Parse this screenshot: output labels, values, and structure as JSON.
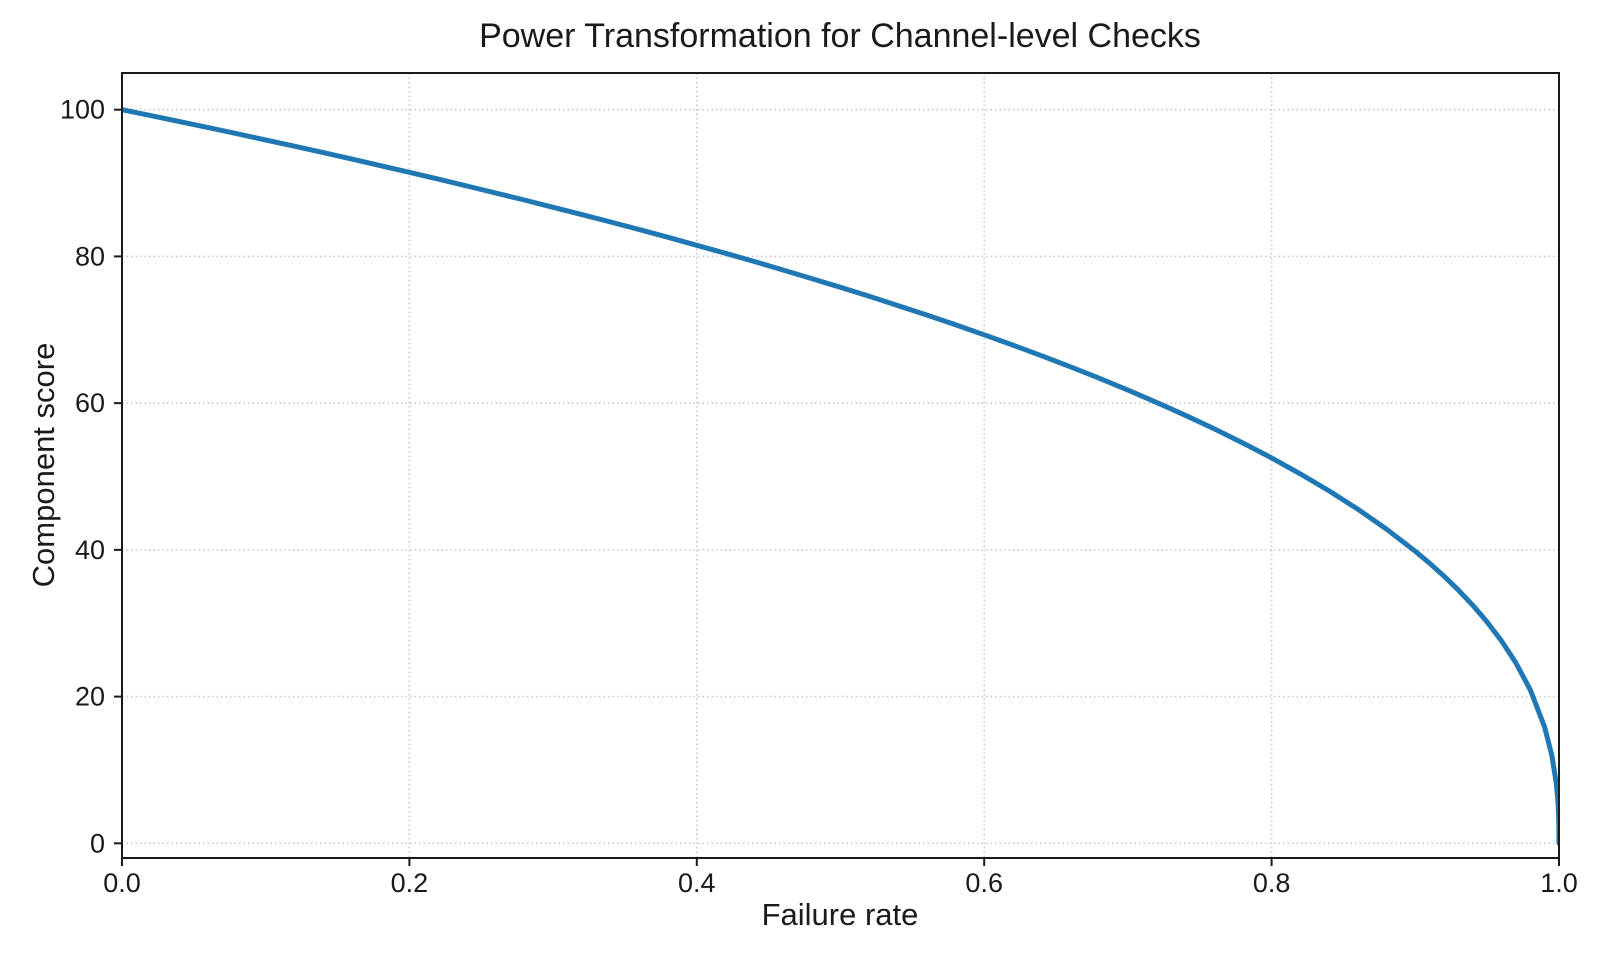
{
  "page": {
    "background": "#ffffff"
  },
  "chart_data": {
    "type": "line",
    "title": "Power Transformation for Channel-level Checks",
    "xlabel": "Failure rate",
    "ylabel": "Component score",
    "xlim": [
      0.0,
      1.0
    ],
    "ylim": [
      -2,
      105
    ],
    "xticks": [
      0.0,
      0.2,
      0.4,
      0.6,
      0.8,
      1.0
    ],
    "xtick_labels": [
      "0.0",
      "0.2",
      "0.4",
      "0.6",
      "0.8",
      "1.0"
    ],
    "yticks": [
      0,
      20,
      40,
      60,
      80,
      100
    ],
    "ytick_labels": [
      "0",
      "20",
      "40",
      "60",
      "80",
      "100"
    ],
    "grid": {
      "visible": true,
      "style": "dotted",
      "color": "#c8c8c8"
    },
    "legend": {
      "visible": false
    },
    "series": [
      {
        "name": "component-score-curve",
        "color": "#1f77b4",
        "line_width": 5,
        "formula": "y = 100 * (1 - x)^0.4",
        "x": [
          0,
          0.02,
          0.04,
          0.06,
          0.08,
          0.1,
          0.12,
          0.14,
          0.16,
          0.18,
          0.2,
          0.22,
          0.24,
          0.26,
          0.28,
          0.3,
          0.32,
          0.34,
          0.36,
          0.38,
          0.4,
          0.42,
          0.44,
          0.46,
          0.48,
          0.5,
          0.52,
          0.54,
          0.56,
          0.58,
          0.6,
          0.62,
          0.64,
          0.66,
          0.68,
          0.7,
          0.72,
          0.74,
          0.76,
          0.78,
          0.8,
          0.82,
          0.84,
          0.86,
          0.88,
          0.9,
          0.91,
          0.92,
          0.93,
          0.94,
          0.95,
          0.96,
          0.97,
          0.98,
          0.99,
          0.995,
          0.998,
          0.999,
          0.9995,
          0.9999,
          1.0
        ],
        "y": [
          100,
          99.19,
          98.38,
          97.56,
          96.72,
          95.87,
          95.02,
          94.15,
          93.26,
          92.37,
          91.46,
          90.54,
          89.6,
          88.65,
          87.69,
          86.7,
          85.7,
          84.69,
          83.65,
          82.6,
          81.52,
          80.42,
          79.3,
          78.15,
          76.98,
          75.79,
          74.56,
          73.3,
          72.01,
          70.68,
          69.31,
          67.91,
          66.45,
          64.95,
          63.4,
          61.78,
          60.1,
          58.34,
          56.5,
          54.57,
          52.53,
          50.36,
          48.04,
          45.55,
          42.82,
          39.81,
          38.17,
          36.41,
          34.52,
          32.45,
          30.17,
          27.59,
          24.6,
          20.91,
          15.85,
          12.01,
          8.33,
          6.31,
          4.78,
          2.51,
          0
        ]
      }
    ]
  }
}
